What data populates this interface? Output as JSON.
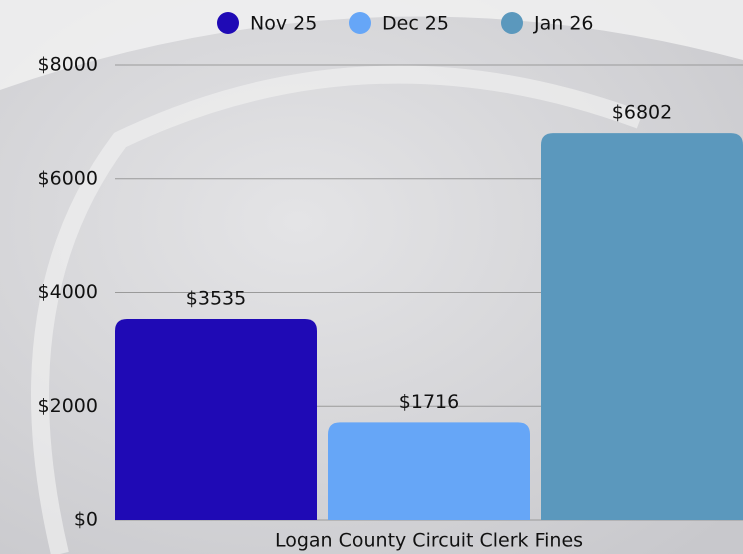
{
  "chart_data": {
    "type": "bar",
    "categories": [
      "Logan County Circuit Clerk Fines"
    ],
    "series": [
      {
        "name": "Nov 25",
        "color": "#1f0ab5",
        "values": [
          3535
        ],
        "value_labels": [
          "$3535"
        ]
      },
      {
        "name": "Dec 25",
        "color": "#66a6f7",
        "values": [
          1716
        ],
        "value_labels": [
          "$1716"
        ]
      },
      {
        "name": "Jan 26",
        "color": "#5b98bd",
        "values": [
          6802
        ],
        "value_labels": [
          "$6802"
        ]
      }
    ],
    "ylim": [
      0,
      8000
    ],
    "yticks": [
      {
        "value": 0,
        "label": "$0"
      },
      {
        "value": 2000,
        "label": "$2000"
      },
      {
        "value": 4000,
        "label": "$4000"
      },
      {
        "value": 6000,
        "label": "$6000"
      },
      {
        "value": 8000,
        "label": "$8000"
      }
    ],
    "grid": true,
    "legend": "top"
  }
}
